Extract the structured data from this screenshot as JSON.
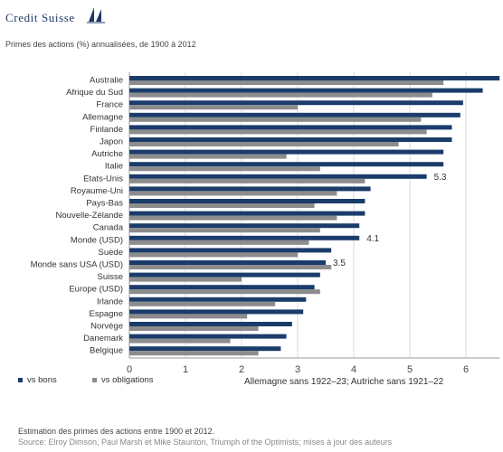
{
  "header": {
    "logo_text": "Credit Suisse",
    "subtitle": "Primes des actions (%) annualisées, de 1900 à 2012"
  },
  "colors": {
    "bonds": "#1b3c6b",
    "bills_placeholder": "",
    "obligations": "#8c8c8c"
  },
  "footer": {
    "line1": "Estimation des primes des actions entre 1900 et 2012.",
    "line2": "Source: Elroy Dimson, Paul Marsh et Mike Staunton, Triumph of the Optimists; mises à jour des auteurs"
  },
  "chart_data": {
    "type": "bar",
    "orientation": "horizontal",
    "categories": [
      "Australie",
      "Afrique du Sud",
      "France",
      "Allemagne",
      "Finlande",
      "Japon",
      "Autriche",
      "Italie",
      "Etats-Unis",
      "Royaume-Uni",
      "Pays-Bas",
      "Nouvelle-Zélande",
      "Canada",
      "Monde (USD)",
      "Suède",
      "Monde sans USA (USD)",
      "Suisse",
      "Europe (USD)",
      "Irlande",
      "Espagne",
      "Norvège",
      "Danemark",
      "Belgique"
    ],
    "series": [
      {
        "name": "vs bons",
        "color": "#1b3c6b",
        "values": [
          6.6,
          6.3,
          5.95,
          5.9,
          5.75,
          5.75,
          5.6,
          5.6,
          5.3,
          4.3,
          4.2,
          4.2,
          4.1,
          4.1,
          3.6,
          3.5,
          3.4,
          3.3,
          3.15,
          3.1,
          2.9,
          2.8,
          2.7
        ]
      },
      {
        "name": "vs obligations",
        "color": "#8c8c8c",
        "values": [
          5.6,
          5.4,
          3.0,
          5.2,
          5.3,
          4.8,
          2.8,
          3.4,
          4.2,
          3.7,
          3.3,
          3.7,
          3.4,
          3.2,
          3.0,
          3.6,
          2.0,
          3.4,
          2.6,
          2.1,
          2.3,
          1.8,
          2.3
        ]
      }
    ],
    "data_labels": [
      {
        "category": "Etats-Unis",
        "text": "5.3"
      },
      {
        "category": "Monde (USD)",
        "text": "4.1"
      },
      {
        "category": "Monde sans USA (USD)",
        "text": "3.5"
      }
    ],
    "xlim": [
      0,
      6.6
    ],
    "xticks": [
      0,
      1,
      2,
      3,
      4,
      5,
      6
    ],
    "grid": "vertical",
    "legend": [
      "vs bons",
      "vs obligations"
    ],
    "legend_placement": "bottom-left",
    "note": "Allemagne sans 1922–23; Autriche sans 1921–22"
  }
}
